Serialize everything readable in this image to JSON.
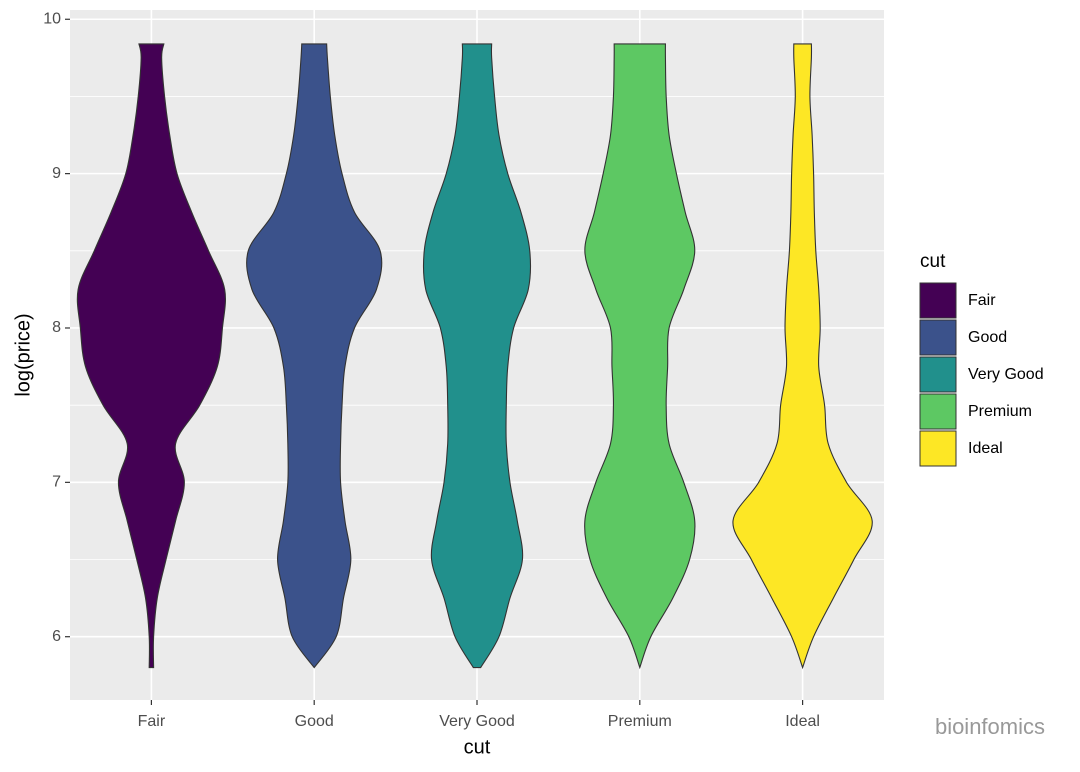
{
  "chart_data": {
    "type": "violin",
    "xlabel": "cut",
    "ylabel": "log(price)",
    "legend_title": "cut",
    "categories": [
      "Fair",
      "Good",
      "Very Good",
      "Premium",
      "Ideal"
    ],
    "ylim": [
      5.59,
      10.06
    ],
    "yticks": [
      6,
      7,
      8,
      9,
      10
    ],
    "grid": true,
    "minor_grid": true,
    "y_grid": [
      5.8,
      6.0,
      6.25,
      6.5,
      6.75,
      7.0,
      7.25,
      7.5,
      7.75,
      8.0,
      8.25,
      8.5,
      8.75,
      9.0,
      9.25,
      9.5,
      9.75,
      9.84
    ],
    "series": [
      {
        "name": "Fair",
        "color": "#440154",
        "widths": [
          0.03,
          0.03,
          0.08,
          0.2,
          0.33,
          0.45,
          0.33,
          0.66,
          0.9,
          0.97,
          1.0,
          0.78,
          0.55,
          0.35,
          0.25,
          0.18,
          0.14,
          0.17
        ]
      },
      {
        "name": "Good",
        "color": "#3b528b",
        "widths": [
          0.0,
          0.3,
          0.4,
          0.5,
          0.42,
          0.36,
          0.36,
          0.38,
          0.42,
          0.55,
          0.85,
          0.9,
          0.55,
          0.38,
          0.28,
          0.22,
          0.18,
          0.17
        ]
      },
      {
        "name": "Very Good",
        "color": "#21908c",
        "widths": [
          0.05,
          0.3,
          0.45,
          0.62,
          0.55,
          0.45,
          0.4,
          0.4,
          0.42,
          0.5,
          0.7,
          0.72,
          0.6,
          0.42,
          0.3,
          0.24,
          0.2,
          0.2
        ]
      },
      {
        "name": "Premium",
        "color": "#5dc863",
        "widths": [
          0.0,
          0.15,
          0.45,
          0.68,
          0.75,
          0.6,
          0.4,
          0.36,
          0.38,
          0.4,
          0.6,
          0.75,
          0.62,
          0.5,
          0.4,
          0.36,
          0.35,
          0.35
        ]
      },
      {
        "name": "Ideal",
        "color": "#fde725",
        "widths": [
          0.0,
          0.15,
          0.42,
          0.7,
          0.95,
          0.6,
          0.35,
          0.3,
          0.22,
          0.24,
          0.22,
          0.18,
          0.16,
          0.15,
          0.13,
          0.1,
          0.12,
          0.12
        ]
      }
    ],
    "watermark": "bioinfomics"
  }
}
